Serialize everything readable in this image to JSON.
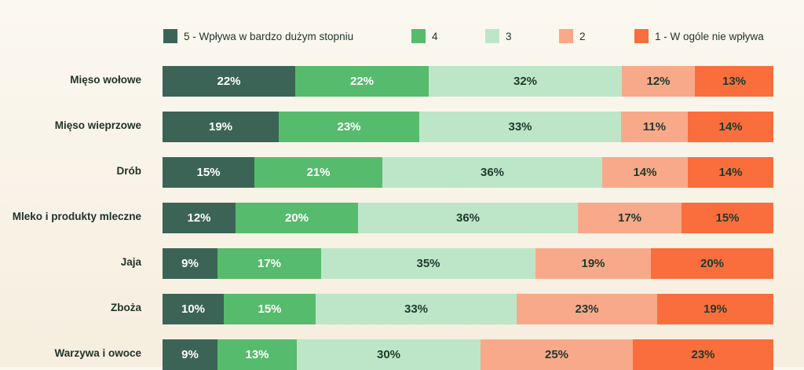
{
  "chart_data": {
    "type": "bar",
    "orientation": "horizontal",
    "stacked": true,
    "title": "",
    "xlabel": "",
    "ylabel": "",
    "legend_position": "top",
    "categories": [
      "Mięso wołowe",
      "Mięso wieprzowe",
      "Drób",
      "Mleko i produkty mleczne",
      "Jaja",
      "Zboża",
      "Warzywa i owoce"
    ],
    "series": [
      {
        "name": "5 - Wpływa w bardzo dużym stopniu",
        "color": "#3c6456",
        "text_color": "#ffffff",
        "values": [
          22,
          19,
          15,
          12,
          9,
          10,
          9
        ]
      },
      {
        "name": "4",
        "color": "#57bb6d",
        "text_color": "#ffffff",
        "values": [
          22,
          23,
          21,
          20,
          17,
          15,
          13
        ]
      },
      {
        "name": "3",
        "color": "#bde6c8",
        "text_color": "#1f3a2e",
        "values": [
          32,
          33,
          36,
          36,
          35,
          33,
          30
        ]
      },
      {
        "name": "2",
        "color": "#f8a98a",
        "text_color": "#1f3a2e",
        "values": [
          12,
          11,
          14,
          17,
          19,
          23,
          25
        ]
      },
      {
        "name": "1 - W ogóle nie wpływa",
        "color": "#f96e3c",
        "text_color": "#1f3a2e",
        "values": [
          13,
          14,
          14,
          15,
          20,
          19,
          23
        ]
      }
    ],
    "value_suffix": "%"
  }
}
